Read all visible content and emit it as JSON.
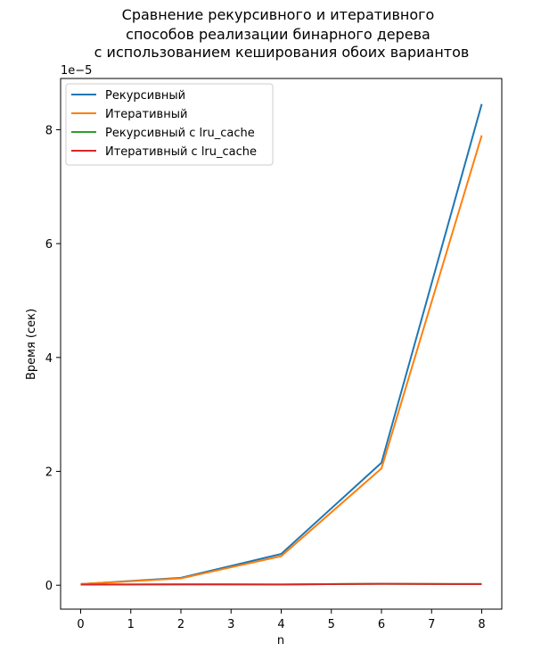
{
  "chart_data": {
    "type": "line",
    "title_lines": [
      "Сравнение рекурсивного и итеративного",
      "способов реализации бинарного дерева",
      "с использованием кеширования обоих вариантов"
    ],
    "xlabel": "n",
    "ylabel": "Время (сек)",
    "y_offset_label": "1e−5",
    "x": [
      0,
      2,
      4,
      6,
      8
    ],
    "xlim": [
      -0.4,
      8.4
    ],
    "ylim": [
      -0.42,
      8.9
    ],
    "x_ticks": [
      0,
      1,
      2,
      3,
      4,
      5,
      6,
      7,
      8
    ],
    "y_ticks": [
      0,
      2,
      4,
      6,
      8
    ],
    "x_tick_labels": [
      "0",
      "1",
      "2",
      "3",
      "4",
      "5",
      "6",
      "7",
      "8"
    ],
    "y_tick_labels": [
      "0",
      "2",
      "4",
      "6",
      "8"
    ],
    "grid": false,
    "legend_position": "top-left",
    "series": [
      {
        "name": "Рекурсивный",
        "color": "#1f77b4",
        "values": [
          0.02,
          0.13,
          0.55,
          2.15,
          8.45
        ]
      },
      {
        "name": "Итеративный",
        "color": "#ff7f0e",
        "values": [
          0.02,
          0.12,
          0.51,
          2.05,
          7.9
        ]
      },
      {
        "name": "Рекурсивный с lru_cache",
        "color": "#2ca02c",
        "values": [
          0.01,
          0.015,
          0.012,
          0.025,
          0.02
        ]
      },
      {
        "name": "Итеративный с lru_cache",
        "color": "#d62728",
        "values": [
          0.01,
          0.015,
          0.012,
          0.025,
          0.02
        ]
      }
    ]
  }
}
